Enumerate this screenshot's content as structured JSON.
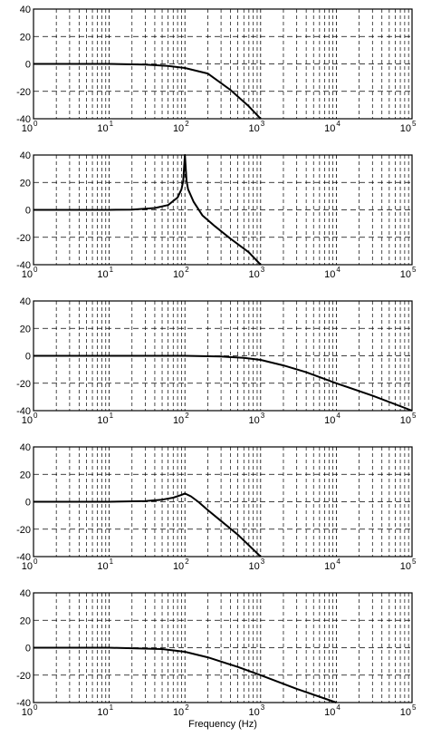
{
  "chart_data": [
    {
      "type": "line",
      "xscale": "log",
      "xlim": [
        1,
        100000
      ],
      "ylim": [
        -40,
        40
      ],
      "grid": true,
      "x_ticks": [
        "10",
        "10",
        "10",
        "10",
        "10",
        "10"
      ],
      "x_exponents": [
        "0",
        "1",
        "2",
        "3",
        "4",
        "5"
      ],
      "y_ticks": [
        "40",
        "20",
        "0",
        "-20",
        "-40"
      ],
      "xlabel": "",
      "ylabel": "",
      "series": [
        {
          "x": [
            1,
            10,
            30,
            60,
            100,
            200,
            400,
            700,
            1000
          ],
          "y": [
            0,
            0,
            -0.5,
            -1.5,
            -3,
            -7,
            -19,
            -31,
            -40
          ]
        }
      ]
    },
    {
      "type": "line",
      "xscale": "log",
      "xlim": [
        1,
        100000
      ],
      "ylim": [
        -40,
        40
      ],
      "grid": true,
      "x_ticks": [
        "10",
        "10",
        "10",
        "10",
        "10",
        "10"
      ],
      "x_exponents": [
        "0",
        "1",
        "2",
        "3",
        "4",
        "5"
      ],
      "y_ticks": [
        "40",
        "20",
        "0",
        "-20",
        "-40"
      ],
      "xlabel": "",
      "ylabel": "",
      "series": [
        {
          "x": [
            1,
            10,
            20,
            40,
            60,
            80,
            90,
            95,
            100,
            105,
            110,
            130,
            170,
            250,
            400,
            700,
            1000
          ],
          "y": [
            0,
            0,
            0.2,
            1.3,
            3.5,
            9,
            15,
            21,
            40,
            21,
            15,
            6,
            -4,
            -12,
            -21,
            -31,
            -40
          ]
        }
      ]
    },
    {
      "type": "line",
      "xscale": "log",
      "xlim": [
        1,
        100000
      ],
      "ylim": [
        -40,
        40
      ],
      "grid": true,
      "x_ticks": [
        "10",
        "10",
        "10",
        "10",
        "10",
        "10"
      ],
      "x_exponents": [
        "0",
        "1",
        "2",
        "3",
        "4",
        "5"
      ],
      "y_ticks": [
        "40",
        "20",
        "0",
        "-20",
        "-40"
      ],
      "xlabel": "",
      "ylabel": "",
      "series": [
        {
          "x": [
            1,
            100,
            300,
            600,
            1000,
            2000,
            4000,
            10000,
            30000,
            100000
          ],
          "y": [
            0,
            0,
            -0.5,
            -1.5,
            -3,
            -7,
            -12,
            -20,
            -29,
            -40
          ]
        }
      ]
    },
    {
      "type": "line",
      "xscale": "log",
      "xlim": [
        1,
        100000
      ],
      "ylim": [
        -40,
        40
      ],
      "grid": true,
      "x_ticks": [
        "10",
        "10",
        "10",
        "10",
        "10",
        "10"
      ],
      "x_exponents": [
        "0",
        "1",
        "2",
        "3",
        "4",
        "5"
      ],
      "y_ticks": [
        "40",
        "20",
        "0",
        "-20",
        "-40"
      ],
      "xlabel": "",
      "ylabel": "",
      "series": [
        {
          "x": [
            1,
            10,
            30,
            50,
            70,
            90,
            100,
            120,
            150,
            200,
            300,
            500,
            1000
          ],
          "y": [
            0,
            0,
            0.5,
            1.5,
            3,
            5,
            6,
            4,
            0,
            -6,
            -14,
            -24,
            -40
          ]
        }
      ]
    },
    {
      "type": "line",
      "xscale": "log",
      "xlim": [
        1,
        100000
      ],
      "ylim": [
        -40,
        40
      ],
      "grid": true,
      "x_ticks": [
        "10",
        "10",
        "10",
        "10",
        "10",
        "10"
      ],
      "x_exponents": [
        "0",
        "1",
        "2",
        "3",
        "4",
        "5"
      ],
      "y_ticks": [
        "40",
        "20",
        "0",
        "-20",
        "-40"
      ],
      "xlabel": "Frequency (Hz)",
      "ylabel": "",
      "series": [
        {
          "x": [
            1,
            10,
            50,
            100,
            200,
            500,
            1000,
            3000,
            10000
          ],
          "y": [
            0,
            0,
            -1,
            -3,
            -7,
            -14,
            -20,
            -30,
            -40
          ]
        }
      ]
    }
  ]
}
